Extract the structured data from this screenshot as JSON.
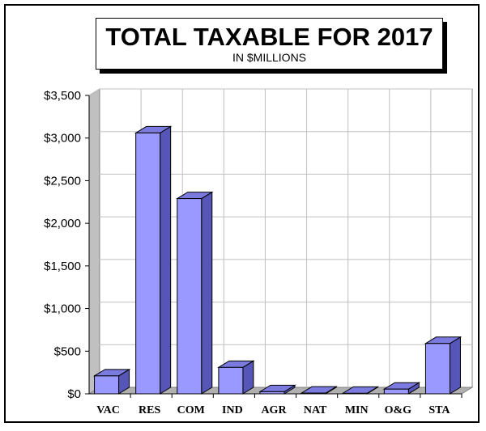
{
  "chart_data": {
    "type": "bar",
    "title": "TOTAL TAXABLE FOR 2017",
    "subtitle": "IN $MILLIONS",
    "xlabel": "",
    "ylabel": "",
    "categories": [
      "VAC",
      "RES",
      "COM",
      "IND",
      "AGR",
      "NAT",
      "MIN",
      "O&G",
      "STA"
    ],
    "values": [
      210,
      3060,
      2290,
      310,
      25,
      8,
      6,
      55,
      590
    ],
    "ylim": [
      0,
      3500
    ],
    "yticks": [
      "$0",
      "$500",
      "$1,000",
      "$1,500",
      "$2,000",
      "$2,500",
      "$3,000",
      "$3,500"
    ],
    "grid": true,
    "legend": "none",
    "colors": {
      "bar_front": "#9999ff",
      "bar_top": "#7b7bdf",
      "bar_side": "#5656b8",
      "floor": "#b0b0b0",
      "wall": "#c0c0c0",
      "grid": "#c0c0c0"
    }
  }
}
